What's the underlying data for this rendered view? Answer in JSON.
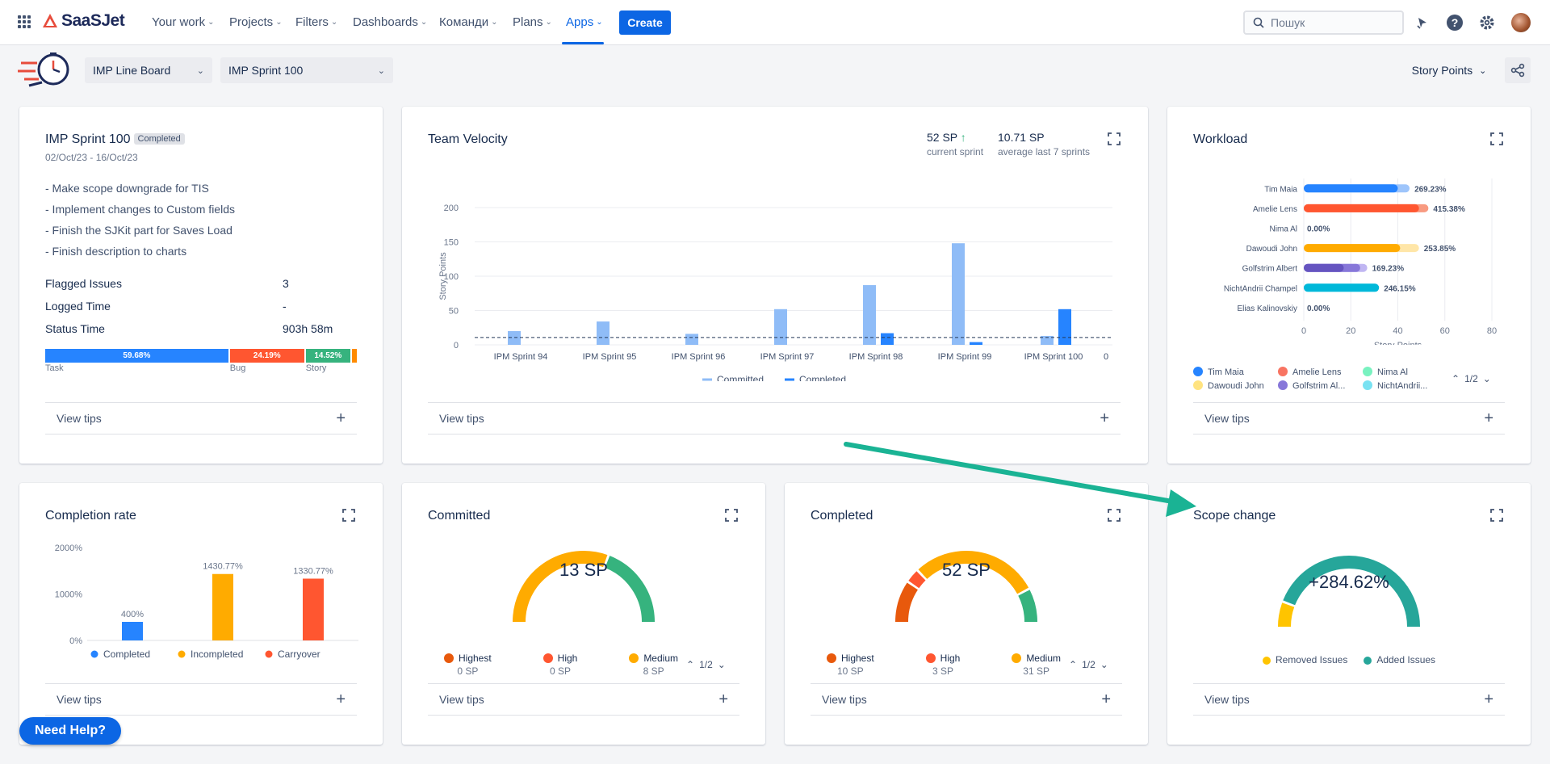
{
  "nav": {
    "brand": "SaaSJet",
    "items": [
      "Your work",
      "Projects",
      "Filters",
      "Dashboards",
      "Команди",
      "Plans",
      "Apps"
    ],
    "create": "Create",
    "search_placeholder": "Пошук"
  },
  "toolbar": {
    "board": "IMP Line Board",
    "sprint": "IMP Sprint 100",
    "metric": "Story Points"
  },
  "sprint_card": {
    "title": "IMP Sprint 100",
    "status": "Completed",
    "dates": "02/Oct/23 - 16/Oct/23",
    "goals": [
      "- Make scope downgrade for TIS",
      "- Implement changes to Custom fields",
      "- Finish the SJKit part for Saves Load",
      "- Finish description to charts"
    ],
    "stats": [
      {
        "label": "Flagged Issues",
        "value": "3"
      },
      {
        "label": "Logged Time",
        "value": "-"
      },
      {
        "label": "Status Time",
        "value": "903h 58m"
      }
    ],
    "distribution": [
      {
        "name": "Task",
        "pct": "59.68%",
        "value": 59.68,
        "color": "#2684ff"
      },
      {
        "name": "Bug",
        "pct": "24.19%",
        "value": 24.19,
        "color": "#ff5630"
      },
      {
        "name": "Story",
        "pct": "14.52%",
        "value": 14.52,
        "color": "#36b37e"
      },
      {
        "name": "",
        "pct": "",
        "value": 1.61,
        "color": "#ff8b00"
      }
    ],
    "tips": "View tips"
  },
  "velocity": {
    "title": "Team Velocity",
    "current_value": "52 SP",
    "current_label": "current sprint",
    "avg_value": "10.71 SP",
    "avg_label": "average last 7 sprints",
    "tips": "View tips"
  },
  "workload": {
    "title": "Workload",
    "tips": "View tips",
    "page": "1/2"
  },
  "completion": {
    "title": "Completion rate",
    "tips": "View tips"
  },
  "committed": {
    "title": "Committed",
    "center": "13 SP",
    "legend": [
      {
        "name": "Highest",
        "value": "0 SP",
        "color": "#e8590c"
      },
      {
        "name": "High",
        "value": "0 SP",
        "color": "#ff5630"
      },
      {
        "name": "Medium",
        "value": "8 SP",
        "color": "#ffab00"
      }
    ],
    "page": "1/2",
    "tips": "View tips"
  },
  "completed": {
    "title": "Completed",
    "center": "52 SP",
    "legend": [
      {
        "name": "Highest",
        "value": "10 SP",
        "color": "#e8590c"
      },
      {
        "name": "High",
        "value": "3 SP",
        "color": "#ff5630"
      },
      {
        "name": "Medium",
        "value": "31 SP",
        "color": "#ffab00"
      }
    ],
    "page": "1/2",
    "tips": "View tips"
  },
  "scope": {
    "title": "Scope change",
    "center": "+284.62%",
    "legend": [
      {
        "name": "Removed Issues",
        "color": "#ffc400"
      },
      {
        "name": "Added Issues",
        "color": "#26a69a"
      }
    ],
    "tips": "View tips"
  },
  "help": "Need Help?",
  "chart_data": [
    {
      "type": "bar",
      "title": "Team Velocity",
      "ylabel": "Story Points",
      "ylim": [
        0,
        200
      ],
      "yticks": [
        0,
        50,
        100,
        150,
        200
      ],
      "categories": [
        "IPM Sprint 94",
        "IPM Sprint 95",
        "IPM Sprint 96",
        "IPM Sprint 97",
        "IPM Sprint 98",
        "IPM Sprint 99",
        "IPM Sprint 100"
      ],
      "extra_tick": "0",
      "average_line": 10.71,
      "series": [
        {
          "name": "Committed",
          "color": "#8fbcf7",
          "values": [
            20,
            34,
            16,
            52,
            87,
            148,
            13
          ]
        },
        {
          "name": "Completed",
          "color": "#2684ff",
          "values": [
            0,
            0,
            0,
            0,
            17,
            4,
            52
          ]
        }
      ]
    },
    {
      "type": "bar",
      "orientation": "horizontal",
      "title": "Workload",
      "xlabel": "Story Points",
      "xlim": [
        0,
        80
      ],
      "xticks": [
        0,
        20,
        40,
        60,
        80
      ],
      "rows": [
        {
          "name": "Tim Maia",
          "solid": 40,
          "light": 45,
          "dark": 0,
          "label": "269.23%",
          "color": "#2684ff",
          "light_color": "#9ec5fb"
        },
        {
          "name": "Amelie Lens",
          "solid": 49,
          "light": 53,
          "dark": 0,
          "label": "415.38%",
          "color": "#ff5630",
          "light_color": "#f89a80"
        },
        {
          "name": "Nima Al",
          "solid": 0,
          "light": 0,
          "dark": 0,
          "label": "0.00%",
          "color": "#57d9a3",
          "light_color": "#abf5d1"
        },
        {
          "name": "Dawoudi John",
          "solid": 41,
          "light": 49,
          "dark": 0,
          "label": "253.85%",
          "color": "#ffab00",
          "light_color": "#ffe6a8"
        },
        {
          "name": "Golfstrim Albert",
          "solid": 17,
          "light": 27,
          "dark": 24,
          "label": "169.23%",
          "color": "#6554c0",
          "light_color": "#c0b6f2",
          "dark_color": "#8777d9"
        },
        {
          "name": "NichtAndrii Champel",
          "solid": 32,
          "light": 32,
          "dark": 0,
          "label": "246.15%",
          "color": "#00b8d9",
          "light_color": "#79e2f2"
        },
        {
          "name": "Elias Kalinovskiy",
          "solid": 0,
          "light": 0,
          "dark": 0,
          "label": "0.00%",
          "color": "#2684ff",
          "light_color": "#9ec5fb"
        }
      ],
      "legend": [
        {
          "name": "Tim Maia",
          "color": "#2684ff"
        },
        {
          "name": "Amelie Lens",
          "color": "#f87462"
        },
        {
          "name": "Nima Al",
          "color": "#79f2c0"
        },
        {
          "name": "Dawoudi John",
          "color": "#ffe380"
        },
        {
          "name": "Golfstrim Al...",
          "color": "#8777d9"
        },
        {
          "name": "NichtAndrii...",
          "color": "#79e2f2"
        }
      ]
    },
    {
      "type": "bar",
      "title": "Completion rate",
      "ylim": [
        0,
        2000
      ],
      "yticks": [
        "0%",
        "1000%",
        "2000%"
      ],
      "categories": [
        "Completed",
        "Incompleted",
        "Carryover"
      ],
      "values": [
        400,
        1430.77,
        1330.77
      ],
      "labels": [
        "400%",
        "1430.77%",
        "1330.77%"
      ],
      "colors": [
        "#2684ff",
        "#ffab00",
        "#ff5630"
      ]
    },
    {
      "type": "pie",
      "style": "gauge",
      "title": "Committed",
      "segments": [
        {
          "name": "Medium",
          "value": 8,
          "color": "#ffab00"
        },
        {
          "name": "Low",
          "value": 5,
          "color": "#36b37e"
        }
      ]
    },
    {
      "type": "pie",
      "style": "gauge",
      "title": "Completed",
      "segments": [
        {
          "name": "Highest",
          "value": 10,
          "color": "#e8590c"
        },
        {
          "name": "High",
          "value": 3,
          "color": "#ff5630"
        },
        {
          "name": "Medium",
          "value": 31,
          "color": "#ffab00"
        },
        {
          "name": "Low",
          "value": 8,
          "color": "#36b37e"
        }
      ]
    },
    {
      "type": "pie",
      "style": "gauge",
      "title": "Scope change",
      "segments": [
        {
          "name": "Removed Issues",
          "value": 1,
          "color": "#ffc400"
        },
        {
          "name": "Added Issues",
          "value": 8,
          "color": "#26a69a"
        }
      ]
    }
  ]
}
